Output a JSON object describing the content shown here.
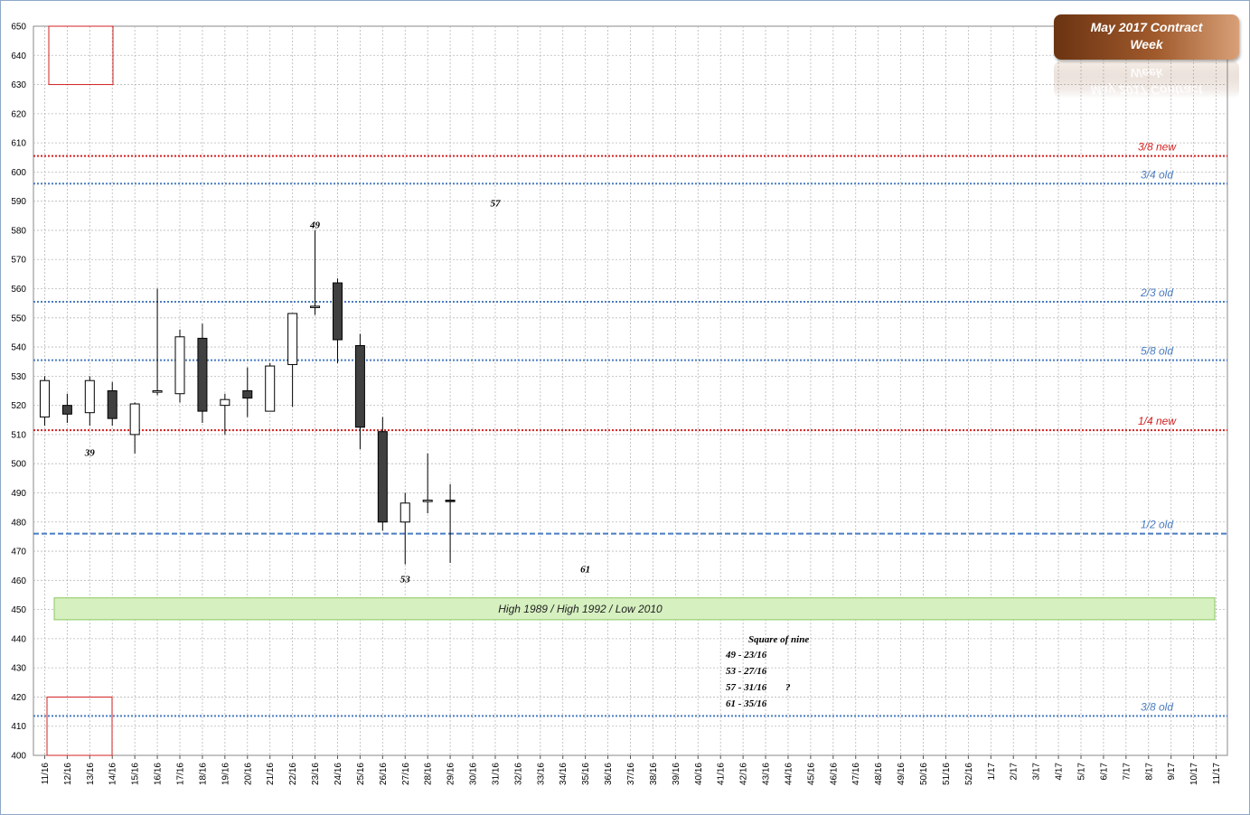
{
  "chart_data": {
    "type": "candlestick",
    "title": "May 2017 Contract Week",
    "title_lines": [
      "May 2017 Contract",
      "Week"
    ],
    "ylim": [
      400,
      650
    ],
    "ytick_step": 10,
    "x": [
      "11/16",
      "12/16",
      "13/16",
      "14/16",
      "15/16",
      "16/16",
      "17/16",
      "18/16",
      "19/16",
      "20/16",
      "21/16",
      "22/16",
      "23/16",
      "24/16",
      "25/16",
      "26/16",
      "27/16",
      "28/16",
      "29/16",
      "30/16",
      "31/16",
      "32/16",
      "33/16",
      "34/16",
      "35/16",
      "36/16",
      "37/16",
      "38/16",
      "39/16",
      "40/16",
      "41/16",
      "42/16",
      "43/16",
      "44/16",
      "45/16",
      "46/16",
      "47/16",
      "48/16",
      "49/16",
      "50/16",
      "51/16",
      "52/16",
      "1/17",
      "2/17",
      "3/17",
      "4/17",
      "5/17",
      "6/17",
      "7/17",
      "8/17",
      "9/17",
      "10/17",
      "11/17"
    ],
    "candles": [
      {
        "o": 516,
        "h": 530,
        "l": 513,
        "c": 528.5
      },
      {
        "o": 520,
        "h": 524,
        "l": 514,
        "c": 517
      },
      {
        "o": 517.5,
        "h": 530,
        "l": 513,
        "c": 528.5
      },
      {
        "o": 525,
        "h": 528,
        "l": 513,
        "c": 515.5
      },
      {
        "o": 510,
        "h": 521,
        "l": 503.5,
        "c": 520.5
      },
      {
        "o": 524.5,
        "h": 560,
        "l": 523.5,
        "c": 525
      },
      {
        "o": 524,
        "h": 546,
        "l": 521,
        "c": 543.5
      },
      {
        "o": 543,
        "h": 548,
        "l": 514,
        "c": 518
      },
      {
        "o": 520,
        "h": 524,
        "l": 510,
        "c": 522
      },
      {
        "o": 525,
        "h": 533,
        "l": 516,
        "c": 522.5
      },
      {
        "o": 518,
        "h": 534.5,
        "l": 518,
        "c": 533.5
      },
      {
        "o": 534,
        "h": 551.5,
        "l": 519.5,
        "c": 551.5
      },
      {
        "o": 554,
        "h": 580,
        "l": 551,
        "c": 554
      },
      {
        "o": 562,
        "h": 563.5,
        "l": 534.5,
        "c": 542.5
      },
      {
        "o": 540.5,
        "h": 544.5,
        "l": 505,
        "c": 512.5
      },
      {
        "o": 511,
        "h": 516,
        "l": 477,
        "c": 480
      },
      {
        "o": 480,
        "h": 490,
        "l": 465.5,
        "c": 486.5
      },
      {
        "o": 487,
        "h": 503.5,
        "l": 483,
        "c": 487.5
      },
      {
        "o": 487.5,
        "h": 493,
        "l": 466,
        "c": 487
      }
    ],
    "levels": [
      {
        "label": "3/8 new",
        "value": 605.5,
        "color": "#d42020",
        "dash": "dot"
      },
      {
        "label": "3/4 old",
        "value": 596,
        "color": "#4a7cc0",
        "dash": "dot"
      },
      {
        "label": "2/3 old",
        "value": 555.5,
        "color": "#4a7cc0",
        "dash": "dot"
      },
      {
        "label": "5/8 old",
        "value": 535.5,
        "color": "#4a7cc0",
        "dash": "dot"
      },
      {
        "label": "1/4 new",
        "value": 511.5,
        "color": "#d42020",
        "dash": "dot"
      },
      {
        "label": "1/2 old",
        "value": 476,
        "color": "#4a7cc0",
        "dash": "dash"
      },
      {
        "label": "3/8 old",
        "value": 413.5,
        "color": "#4a7cc0",
        "dash": "dot"
      }
    ],
    "band": {
      "label": "High 1989 / High 1992 / Low 2010",
      "from": 446.5,
      "to": 454
    },
    "annotations": [
      {
        "text": "39",
        "x": "13/16",
        "y": 504
      },
      {
        "text": "49",
        "x": "23/16",
        "y": 582
      },
      {
        "text": "53",
        "x": "27/16",
        "y": 460.5
      },
      {
        "text": "57",
        "x": "31/16",
        "y": 589.5
      },
      {
        "text": "61",
        "x": "35/16",
        "y": 464
      }
    ],
    "square_of_nine": {
      "heading": "Square of nine",
      "lines": [
        "49 - 23/16",
        "53 - 27/16",
        "57 - 31/16",
        "61 - 35/16"
      ],
      "mark": "?"
    },
    "colors": {
      "up": "#ffffff",
      "down": "#404040",
      "band_fill": "#d6f0c0",
      "band_stroke": "#8cc860",
      "box": "#d42020",
      "grid": "#b8b8b8"
    }
  }
}
